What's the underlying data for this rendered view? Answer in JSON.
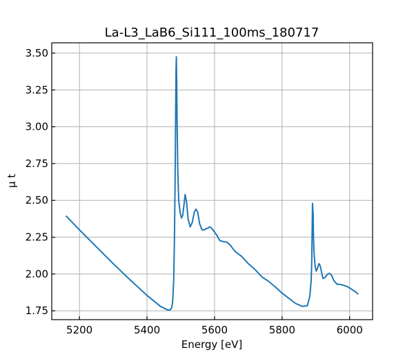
{
  "chart_data": {
    "type": "line",
    "title": "La-L3_LaB6_Si111_100ms_180717",
    "xlabel": "Energy [eV]",
    "ylabel": "μ t",
    "xlim": [
      5118,
      6068
    ],
    "ylim": [
      1.69,
      3.57
    ],
    "grid": true,
    "tick_direction": "in",
    "xticks": [
      5200,
      5400,
      5600,
      5800,
      6000
    ],
    "xtick_labels": [
      "5200",
      "5400",
      "5600",
      "5800",
      "6000"
    ],
    "yticks": [
      1.75,
      2.0,
      2.25,
      2.5,
      2.75,
      3.0,
      3.25,
      3.5
    ],
    "ytick_labels": [
      "1.75",
      "2.00",
      "2.25",
      "2.50",
      "2.75",
      "3.00",
      "3.25",
      "3.50"
    ],
    "colors": {
      "series": "#1f77b4",
      "grid": "#b0b0b0"
    },
    "series": [
      {
        "x": [
          5160,
          5200,
          5250,
          5300,
          5350,
          5400,
          5440,
          5460,
          5468,
          5473,
          5476,
          5479,
          5481,
          5483,
          5485,
          5486,
          5487,
          5488,
          5489,
          5491,
          5494,
          5498,
          5502,
          5506,
          5510,
          5513,
          5517,
          5522,
          5528,
          5534,
          5540,
          5545,
          5550,
          5556,
          5563,
          5570,
          5576,
          5580,
          5585,
          5590,
          5595,
          5600,
          5608,
          5615,
          5625,
          5635,
          5645,
          5660,
          5680,
          5700,
          5720,
          5740,
          5760,
          5780,
          5800,
          5820,
          5840,
          5860,
          5875,
          5882,
          5886,
          5888,
          5889,
          5890,
          5892,
          5893,
          5895,
          5898,
          5901,
          5905,
          5909,
          5913,
          5917,
          5921,
          5927,
          5933,
          5940,
          5947,
          5952,
          5957,
          5963,
          5970,
          5980,
          5990,
          6000,
          6010,
          6020,
          6025
        ],
        "y": [
          2.395,
          2.3,
          2.185,
          2.07,
          1.96,
          1.855,
          1.78,
          1.757,
          1.755,
          1.77,
          1.81,
          1.95,
          2.2,
          2.6,
          3.1,
          3.38,
          3.475,
          3.3,
          3.05,
          2.72,
          2.5,
          2.42,
          2.38,
          2.4,
          2.48,
          2.54,
          2.49,
          2.37,
          2.32,
          2.35,
          2.42,
          2.44,
          2.42,
          2.34,
          2.3,
          2.3,
          2.31,
          2.31,
          2.32,
          2.315,
          2.3,
          2.285,
          2.26,
          2.228,
          2.22,
          2.218,
          2.2,
          2.155,
          2.12,
          2.07,
          2.03,
          1.98,
          1.95,
          1.912,
          1.87,
          1.835,
          1.8,
          1.78,
          1.785,
          1.85,
          1.95,
          2.1,
          2.3,
          2.48,
          2.4,
          2.25,
          2.13,
          2.05,
          2.02,
          2.04,
          2.07,
          2.055,
          2.01,
          1.97,
          1.975,
          1.995,
          2.005,
          1.99,
          1.96,
          1.945,
          1.93,
          1.93,
          1.925,
          1.918,
          1.905,
          1.89,
          1.875,
          1.862
        ]
      }
    ]
  }
}
